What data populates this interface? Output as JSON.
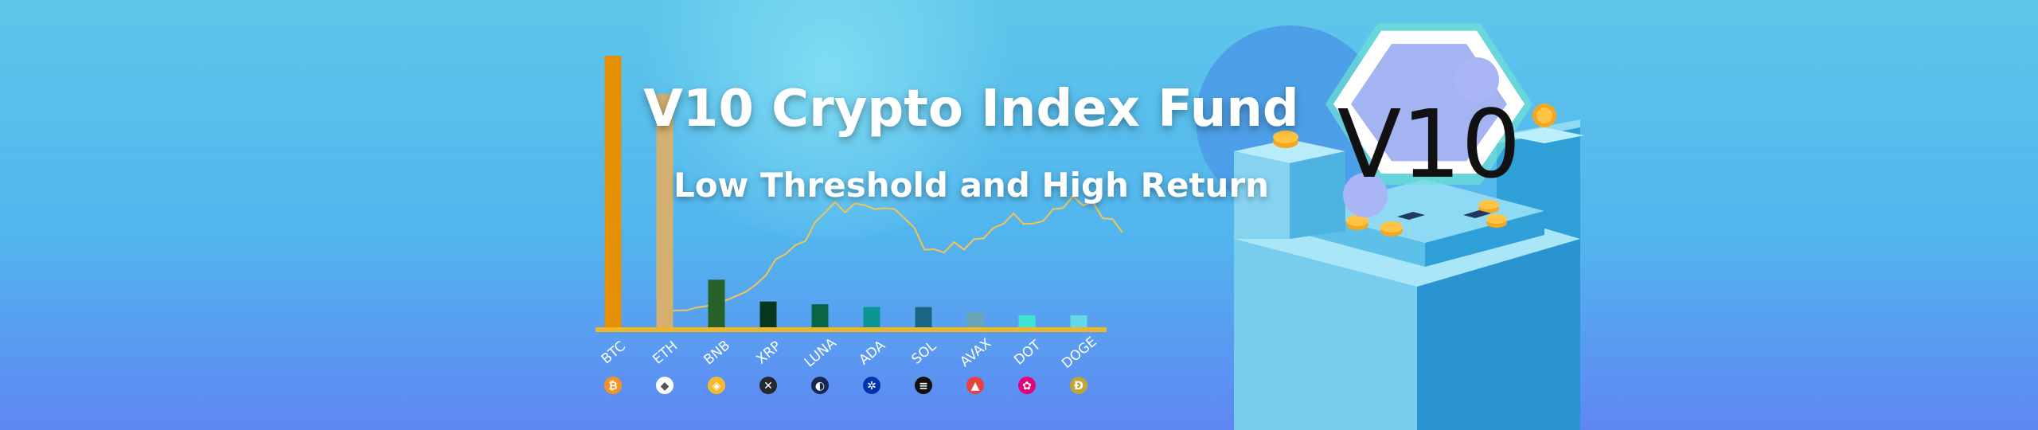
{
  "banner": {
    "title": "V10 Crypto Index Fund",
    "subtitle": "Low Threshold and High Return",
    "logo_text": "V10",
    "colors": {
      "background_top": "#5ec6ea",
      "background_bottom": "#5f86f3",
      "axis": "#f0b429",
      "price_line": "#f5c451",
      "btc": "#e58f05"
    }
  },
  "chart_data": {
    "type": "bar",
    "categories": [
      "BTC",
      "ETH",
      "BNB",
      "XRP",
      "LUNA",
      "ADA",
      "SOL",
      "AVAX",
      "DOT",
      "DOGE"
    ],
    "values": [
      100,
      86,
      18,
      10,
      9,
      8,
      8,
      6,
      5,
      5
    ],
    "bar_colors": [
      "#e58f05",
      "#d4b070",
      "#27612a",
      "#06361c",
      "#096448",
      "#0b9591",
      "#1b6584",
      "#6aa6b3",
      "#3fe3d2",
      "#66d7ea"
    ],
    "ylim": [
      0,
      100
    ],
    "coin_icons": [
      {
        "name": "bitcoin-icon",
        "color": "#f7931a",
        "glyph": "₿"
      },
      {
        "name": "ethereum-icon",
        "color": "#ffffff",
        "glyph": "◆"
      },
      {
        "name": "bnb-icon",
        "color": "#f3ba2f",
        "glyph": "◈"
      },
      {
        "name": "xrp-icon",
        "color": "#23292f",
        "glyph": "✕"
      },
      {
        "name": "luna-icon",
        "color": "#172852",
        "glyph": "◐"
      },
      {
        "name": "cardano-icon",
        "color": "#0033ad",
        "glyph": "✲"
      },
      {
        "name": "solana-icon",
        "color": "#111111",
        "glyph": "≡"
      },
      {
        "name": "avalanche-icon",
        "color": "#e84142",
        "glyph": "▲"
      },
      {
        "name": "polkadot-icon",
        "color": "#e6007a",
        "glyph": "✿"
      },
      {
        "name": "dogecoin-icon",
        "color": "#c2a633",
        "glyph": "Ð"
      }
    ],
    "price_series": [
      3,
      3,
      4,
      4,
      6,
      7,
      9,
      11,
      14,
      17,
      22,
      30,
      38,
      45,
      48,
      54,
      64,
      74,
      78,
      74,
      77,
      79,
      73,
      77,
      73,
      70,
      60,
      48,
      45,
      46,
      50,
      48,
      52,
      56,
      60,
      66,
      70,
      66,
      63,
      68,
      73,
      77,
      82,
      79,
      78,
      70,
      66,
      60
    ]
  }
}
